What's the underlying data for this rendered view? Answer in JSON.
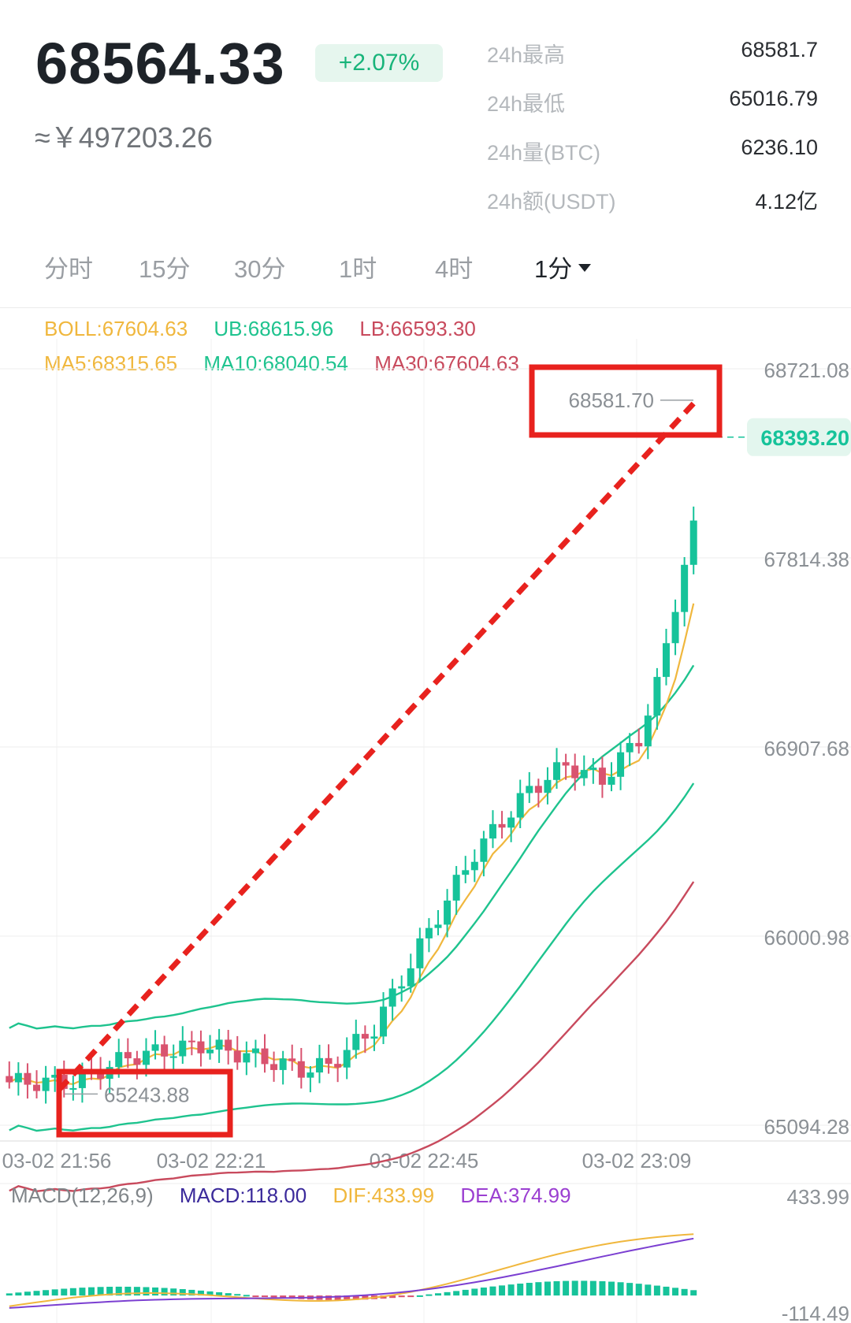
{
  "header": {
    "price": "68564.33",
    "change": "+2.07%",
    "cny": "≈￥497203.26",
    "stats": [
      {
        "label": "24h最高",
        "value": "68581.7"
      },
      {
        "label": "24h最低",
        "value": "65016.79"
      },
      {
        "label": "24h量(BTC)",
        "value": "6236.10"
      },
      {
        "label": "24h额(USDT)",
        "value": "4.12亿"
      }
    ]
  },
  "tabs": [
    {
      "label": "分时"
    },
    {
      "label": "15分"
    },
    {
      "label": "30分"
    },
    {
      "label": "1时"
    },
    {
      "label": "4时"
    },
    {
      "label": "1分"
    }
  ],
  "indicators": {
    "boll": "BOLL:67604.63",
    "ub": "UB:68615.96",
    "lb": "LB:66593.30",
    "ma5": "MA5:68315.65",
    "ma10": "MA10:68040.54",
    "ma30": "MA30:67604.63"
  },
  "macd_legend": {
    "params": "MACD(12,26,9)",
    "macd": "MACD:118.00",
    "dif": "DIF:433.99",
    "dea": "DEA:374.99"
  },
  "colors": {
    "up": "#16c39a",
    "down": "#d9536f",
    "ma5": "#f0b73d",
    "ma10": "#1ec38e",
    "ma30": "#c84a5d",
    "annotation": "#e8221e",
    "macd_dea": "#7b3fd1"
  },
  "chart_data": {
    "type": "candlestick",
    "y_ticks": [
      "68721.08",
      "67814.38",
      "66907.68",
      "66000.98",
      "65094.28"
    ],
    "ylim": [
      65094.28,
      68721.08
    ],
    "x_ticks": [
      "03-02 21:56",
      "03-02 22:21",
      "03-02 22:45",
      "03-02 23:09"
    ],
    "current_price_label": "68393.20",
    "current_price": 68393.2,
    "high_marker": {
      "label": "68581.70",
      "value": 68581.7
    },
    "low_marker": {
      "label": "65243.88",
      "value": 65243.88
    },
    "macd_axis": [
      "433.99",
      "-114.49"
    ],
    "macd_ylim": [
      -114.49,
      433.99
    ]
  }
}
